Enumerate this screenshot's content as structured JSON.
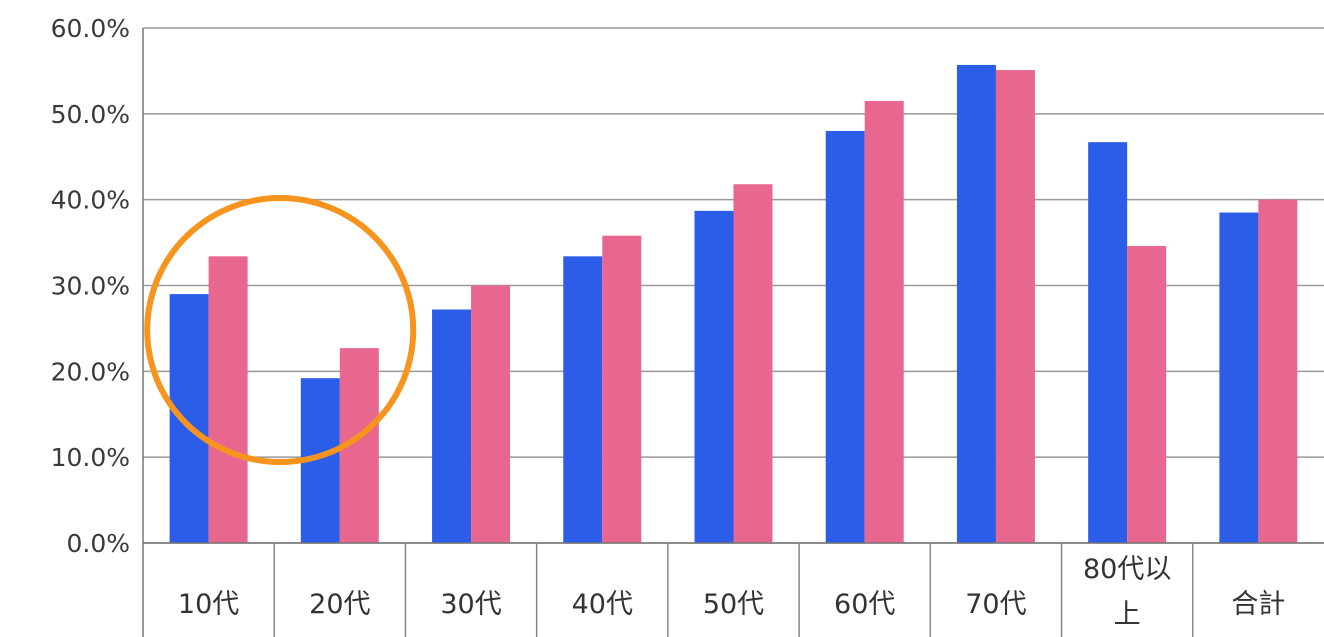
{
  "chart_data": {
    "type": "bar",
    "categories": [
      "10代",
      "20代",
      "30代",
      "40代",
      "50代",
      "60代",
      "70代",
      "80代以上",
      "合計"
    ],
    "series": [
      {
        "values": [
          29.0,
          19.2,
          27.2,
          33.4,
          38.7,
          48.0,
          55.7,
          46.7,
          38.5
        ]
      },
      {
        "values": [
          33.4,
          22.7,
          30.0,
          35.8,
          41.8,
          51.5,
          55.1,
          34.6,
          40.0
        ]
      }
    ],
    "ylim": [
      0,
      60
    ],
    "yticks": [
      "0.0%",
      "10.0%",
      "20.0%",
      "30.0%",
      "40.0%",
      "50.0%",
      "60.0%"
    ],
    "grid": true,
    "colors": {
      "series": [
        "#2b5de8",
        "#e8678f"
      ],
      "highlight": "#f7941d",
      "grid": "#999999"
    },
    "annotation": {
      "shape": "circle",
      "highlights": [
        "10代",
        "20代"
      ]
    }
  }
}
